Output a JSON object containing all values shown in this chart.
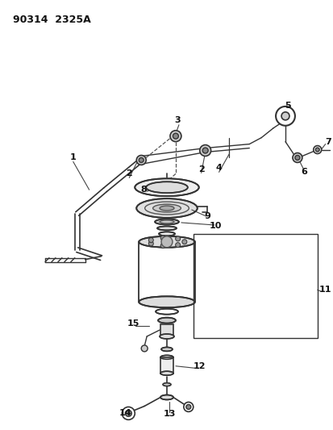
{
  "title": "90314  2325A",
  "bg": "#ffffff",
  "lc": "#222222",
  "figsize": [
    4.14,
    5.33
  ],
  "dpi": 100
}
